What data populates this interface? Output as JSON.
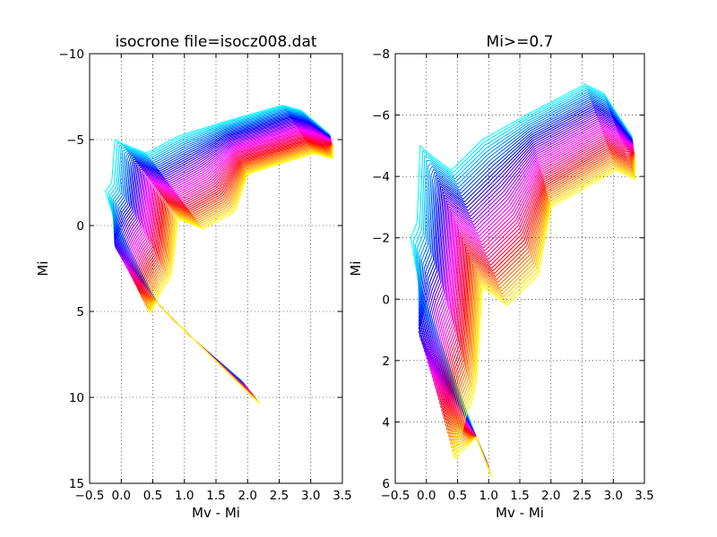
{
  "chart_data": [
    {
      "type": "line",
      "title": "isocrone file=isocz008.dat",
      "xlabel": "Mv - Mi",
      "ylabel": "Mi",
      "xlim": [
        -0.5,
        3.5
      ],
      "ylim": [
        15,
        -10
      ],
      "y_inverted": true,
      "grid": true,
      "grid_style": "dotted",
      "xticks": [
        -0.5,
        0.0,
        0.5,
        1.0,
        1.5,
        2.0,
        2.5,
        3.0,
        3.5
      ],
      "xtick_labels": [
        "−0.5",
        "0.0",
        "0.5",
        "1.0",
        "1.5",
        "2.0",
        "2.5",
        "3.0",
        "3.5"
      ],
      "yticks": [
        -10,
        -5,
        0,
        5,
        10,
        15
      ],
      "ytick_labels": [
        "−10",
        "−5",
        "0",
        "5",
        "10",
        "15"
      ],
      "series_count": 48,
      "colormap": [
        "#00ffff",
        "#0000ff",
        "#ff00ff",
        "#ff0000",
        "#ffff00"
      ],
      "series_envelope": {
        "lower_main_sequence": {
          "x": [
            0.6,
            0.8,
            1.0,
            1.3,
            1.6,
            1.9,
            2.2
          ],
          "y": [
            5.0,
            5.6,
            6.2,
            7.2,
            8.1,
            9.1,
            10.4
          ]
        },
        "young_turnoff": {
          "x": -0.15,
          "y": -2.5
        },
        "giant_branch_end": {
          "x": 3.3,
          "y": -4.8
        },
        "blue_loop_top": {
          "x": 2.85,
          "y": -7.0
        }
      }
    },
    {
      "type": "line",
      "title": "Mi>=0.7",
      "xlabel": "Mv - Mi",
      "ylabel": "Mi",
      "xlim": [
        -0.5,
        3.5
      ],
      "ylim": [
        6,
        -8
      ],
      "y_inverted": true,
      "grid": true,
      "grid_style": "dotted",
      "xticks": [
        -0.5,
        0.0,
        0.5,
        1.0,
        1.5,
        2.0,
        2.5,
        3.0,
        3.5
      ],
      "xtick_labels": [
        "−0.5",
        "0.0",
        "0.5",
        "1.0",
        "1.5",
        "2.0",
        "2.5",
        "3.0",
        "3.5"
      ],
      "yticks": [
        -8,
        -6,
        -4,
        -2,
        0,
        2,
        4,
        6
      ],
      "ytick_labels": [
        "−8",
        "−6",
        "−4",
        "−2",
        "0",
        "2",
        "4",
        "6"
      ],
      "series_count": 48,
      "colormap": [
        "#00ffff",
        "#0000ff",
        "#ff00ff",
        "#ff0000",
        "#ffff00"
      ],
      "series_envelope": {
        "lower_main_sequence": {
          "x": [
            0.75,
            0.9,
            1.05
          ],
          "y": [
            4.5,
            5.2,
            5.8
          ]
        },
        "young_turnoff": {
          "x": -0.15,
          "y": -2.5
        },
        "giant_branch_end": {
          "x": 3.3,
          "y": -4.8
        },
        "blue_loop_top": {
          "x": 2.85,
          "y": -7.0
        }
      }
    }
  ]
}
